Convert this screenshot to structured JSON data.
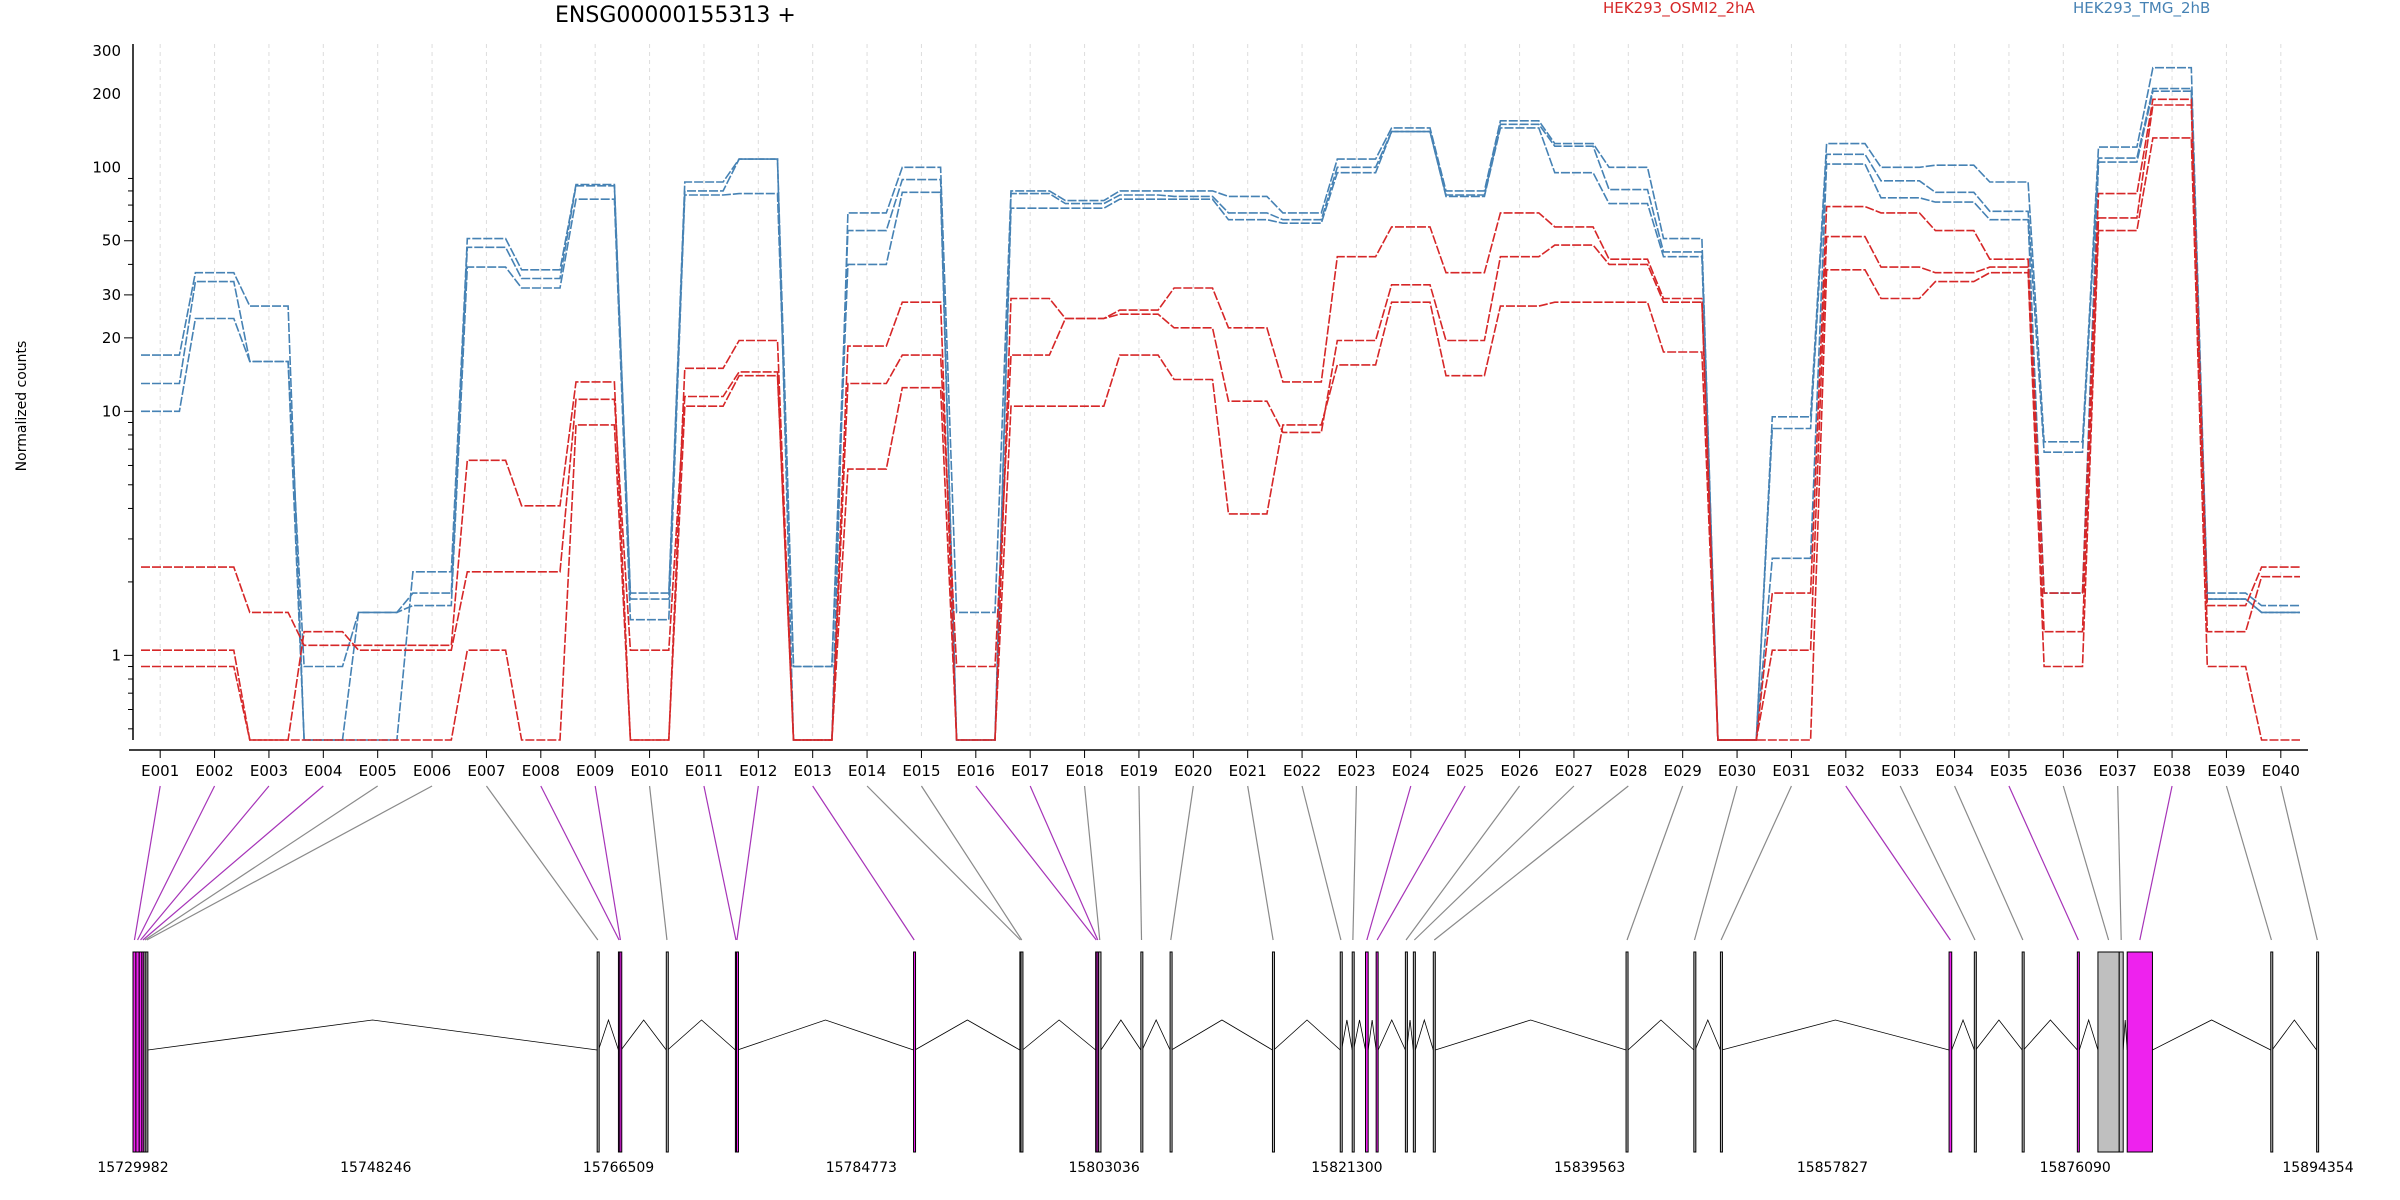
{
  "chart_data": {
    "type": "line",
    "title": "ENSG00000155313 +",
    "ylabel": "Normalized counts",
    "yscale": "log",
    "ylim": [
      0.45,
      320
    ],
    "yticks": [
      1,
      10,
      20,
      30,
      50,
      100,
      200,
      300
    ],
    "grid": "vertical dashed per exon",
    "legend": {
      "placement": "top-right",
      "entries": [
        {
          "label": "HEK293_OSMI2_2hA",
          "color": "#d62728"
        },
        {
          "label": "HEK293_TMG_2hB",
          "color": "#4682b4"
        }
      ]
    },
    "categories": [
      "E001",
      "E002",
      "E003",
      "E004",
      "E005",
      "E006",
      "E007",
      "E008",
      "E009",
      "E010",
      "E011",
      "E012",
      "E013",
      "E014",
      "E015",
      "E016",
      "E017",
      "E018",
      "E019",
      "E020",
      "E021",
      "E022",
      "E023",
      "E024",
      "E025",
      "E026",
      "E027",
      "E028",
      "E029",
      "E030",
      "E031",
      "E032",
      "E033",
      "E034",
      "E035",
      "E036",
      "E037",
      "E038",
      "E039",
      "E040"
    ],
    "series": [
      {
        "group": "HEK293_TMG_2hB",
        "color": "#4682b4",
        "values": [
          17,
          37,
          27,
          0.45,
          0.45,
          2.2,
          51,
          38,
          85,
          1.8,
          87,
          108,
          0.45,
          65,
          100,
          1.5,
          80,
          73,
          80,
          80,
          76,
          65,
          108,
          145,
          80,
          155,
          125,
          100,
          51,
          0.45,
          9.5,
          125,
          100,
          102,
          87,
          7.5,
          121,
          256,
          1.8,
          1.6
        ]
      },
      {
        "group": "HEK293_TMG_2hB",
        "color": "#4682b4",
        "values": [
          13,
          34,
          16,
          0.9,
          1.5,
          1.8,
          47,
          35,
          84,
          1.7,
          80,
          108,
          0.9,
          55,
          89,
          0.45,
          78,
          71,
          77,
          76,
          65,
          61,
          100,
          140,
          77,
          150,
          122,
          81,
          45,
          0.45,
          8.5,
          113,
          88,
          79,
          66,
          6.8,
          109,
          210,
          1.7,
          1.5
        ]
      },
      {
        "group": "HEK293_TMG_2hB",
        "color": "#4682b4",
        "values": [
          10,
          24,
          16,
          0.45,
          1.5,
          1.6,
          39,
          32,
          74,
          1.4,
          77,
          78,
          0.9,
          40,
          79,
          0.45,
          68,
          68,
          74,
          74,
          61,
          59,
          95,
          140,
          76,
          145,
          95,
          71,
          43,
          0.45,
          2.5,
          103,
          75,
          72,
          61,
          1.8,
          105,
          205,
          1.7,
          1.5
        ]
      },
      {
        "group": "HEK293_OSMI2_2hA",
        "color": "#d62728",
        "values": [
          2.3,
          2.3,
          1.5,
          1.1,
          1.1,
          1.1,
          6.3,
          4.1,
          13.2,
          0.45,
          15,
          19.5,
          0.45,
          18.5,
          28,
          0.45,
          29,
          24,
          26,
          32,
          22,
          13.2,
          43,
          57,
          37,
          65,
          57,
          42,
          29,
          0.45,
          1.8,
          69,
          65,
          55,
          42,
          1.8,
          78,
          190,
          1.6,
          2.3
        ]
      },
      {
        "group": "HEK293_OSMI2_2hA",
        "color": "#d62728",
        "values": [
          1.05,
          1.05,
          0.45,
          1.25,
          1.05,
          1.05,
          2.2,
          2.2,
          11.2,
          1.05,
          11.5,
          14.5,
          0.45,
          13,
          17,
          0.9,
          17,
          24,
          25,
          22,
          11,
          8.2,
          19.5,
          33,
          19.5,
          43,
          48,
          40,
          28,
          0.45,
          1.05,
          52,
          39,
          37,
          39,
          1.25,
          62,
          180,
          1.25,
          2.1
        ]
      },
      {
        "group": "HEK293_OSMI2_2hA",
        "color": "#d62728",
        "values": [
          0.9,
          0.9,
          0.45,
          0.45,
          0.45,
          0.45,
          1.05,
          0.45,
          8.8,
          0.45,
          10.5,
          14,
          0.45,
          5.8,
          12.5,
          0.45,
          10.5,
          10.5,
          17,
          13.5,
          3.8,
          8.8,
          15.5,
          28,
          14,
          27,
          28,
          28,
          17.5,
          0.45,
          0.45,
          38,
          29,
          34,
          37,
          0.9,
          55,
          132,
          0.9,
          0.45
        ]
      }
    ],
    "genomic_axis": {
      "tick_labels": [
        "15729982",
        "15748246",
        "15766509",
        "15784773",
        "15803036",
        "15821300",
        "15839563",
        "15857827",
        "15876090",
        "15894354"
      ],
      "exons": [
        {
          "s": 15729982,
          "e": 15730200,
          "hl": true
        },
        {
          "s": 15730200,
          "e": 15730450,
          "hl": true
        },
        {
          "s": 15730450,
          "e": 15730650,
          "hl": true
        },
        {
          "s": 15730650,
          "e": 15730800,
          "hl": true
        },
        {
          "s": 15730800,
          "e": 15730950,
          "hl": false
        },
        {
          "s": 15730950,
          "e": 15731100,
          "hl": false
        },
        {
          "s": 15764900,
          "e": 15765000,
          "hl": false
        },
        {
          "s": 15766500,
          "e": 15766600,
          "hl": true
        },
        {
          "s": 15766600,
          "e": 15766700,
          "hl": true
        },
        {
          "s": 15770100,
          "e": 15770200,
          "hl": false
        },
        {
          "s": 15775300,
          "e": 15775380,
          "hl": true
        },
        {
          "s": 15775380,
          "e": 15775450,
          "hl": true
        },
        {
          "s": 15788700,
          "e": 15788800,
          "hl": true
        },
        {
          "s": 15796700,
          "e": 15796780,
          "hl": false
        },
        {
          "s": 15796780,
          "e": 15796900,
          "hl": false
        },
        {
          "s": 15802400,
          "e": 15802500,
          "hl": true
        },
        {
          "s": 15802500,
          "e": 15802620,
          "hl": true
        },
        {
          "s": 15802620,
          "e": 15802800,
          "hl": false
        },
        {
          "s": 15805800,
          "e": 15805900,
          "hl": false
        },
        {
          "s": 15808000,
          "e": 15808100,
          "hl": false
        },
        {
          "s": 15815700,
          "e": 15815800,
          "hl": false
        },
        {
          "s": 15820800,
          "e": 15820900,
          "hl": false
        },
        {
          "s": 15821700,
          "e": 15821800,
          "hl": false
        },
        {
          "s": 15822700,
          "e": 15822900,
          "hl": true
        },
        {
          "s": 15823500,
          "e": 15823650,
          "hl": true
        },
        {
          "s": 15825700,
          "e": 15825800,
          "hl": false
        },
        {
          "s": 15826300,
          "e": 15826450,
          "hl": false
        },
        {
          "s": 15827800,
          "e": 15827950,
          "hl": false
        },
        {
          "s": 15842300,
          "e": 15842450,
          "hl": false
        },
        {
          "s": 15847400,
          "e": 15847500,
          "hl": false
        },
        {
          "s": 15849400,
          "e": 15849500,
          "hl": false
        },
        {
          "s": 15866600,
          "e": 15866800,
          "hl": true
        },
        {
          "s": 15868500,
          "e": 15868600,
          "hl": false
        },
        {
          "s": 15872100,
          "e": 15872200,
          "hl": false
        },
        {
          "s": 15876250,
          "e": 15876400,
          "hl": true
        },
        {
          "s": 15877800,
          "e": 15879400,
          "hl": false
        },
        {
          "s": 15879400,
          "e": 15879700,
          "hl": false
        },
        {
          "s": 15880000,
          "e": 15881900,
          "hl": true
        },
        {
          "s": 15890800,
          "e": 15890900,
          "hl": false
        },
        {
          "s": 15894250,
          "e": 15894354,
          "hl": false
        }
      ]
    }
  }
}
